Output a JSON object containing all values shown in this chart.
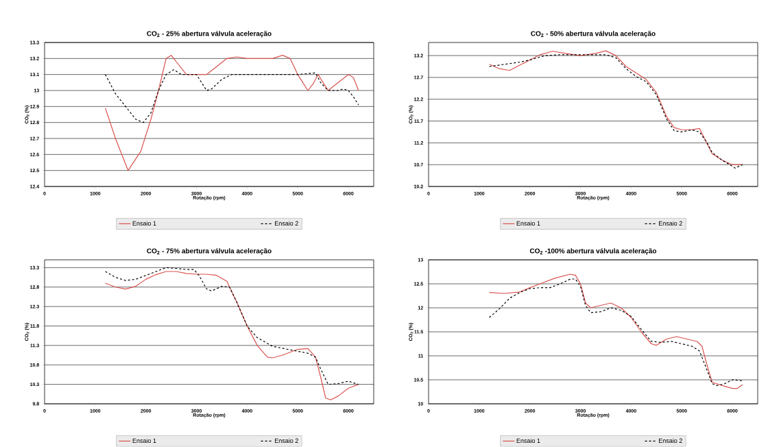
{
  "chart_data": [
    {
      "type": "line",
      "title": "CO$_{2}$ - 25% abertura válvula aceleração",
      "xlabel": "Rotação (rpm)",
      "ylabel": "CO$_{2}$ (%)",
      "xlim": [
        0,
        6500
      ],
      "xticks": [
        0,
        1000,
        2000,
        3000,
        4000,
        5000,
        6000
      ],
      "ylim": [
        12.4,
        13.3
      ],
      "yticks": [
        12.4,
        12.5,
        12.6,
        12.7,
        12.8,
        12.9,
        13,
        13.1,
        13.2,
        13.3
      ],
      "grid": "y",
      "legend": "bottom",
      "series": [
        {
          "name": "Ensaio 1",
          "color": "#d9534f",
          "line_style": "solid",
          "x": [
            1200,
            1400,
            1650,
            1900,
            2100,
            2250,
            2400,
            2500,
            2600,
            2800,
            3000,
            3200,
            3400,
            3600,
            3800,
            4000,
            4500,
            4700,
            4850,
            5000,
            5100,
            5200,
            5300,
            5400,
            5500,
            5600,
            5800,
            6000,
            6100,
            6200
          ],
          "values": [
            12.89,
            12.7,
            12.5,
            12.62,
            12.82,
            13.0,
            13.2,
            13.22,
            13.18,
            13.1,
            13.1,
            13.1,
            13.15,
            13.2,
            13.21,
            13.2,
            13.2,
            13.22,
            13.2,
            13.1,
            13.05,
            13.0,
            13.04,
            13.1,
            13.05,
            13.0,
            13.05,
            13.1,
            13.08,
            13.0
          ]
        },
        {
          "name": "Ensaio 2",
          "color": "#000000",
          "line_style": "dashed",
          "x": [
            1200,
            1400,
            1600,
            1800,
            1950,
            2100,
            2250,
            2400,
            2550,
            2700,
            2900,
            3000,
            3100,
            3200,
            3300,
            3500,
            3700,
            4000,
            5000,
            5350,
            5450,
            5600,
            5800,
            5900,
            6000,
            6100,
            6200
          ],
          "values": [
            13.1,
            12.98,
            12.9,
            12.82,
            12.8,
            12.86,
            13.0,
            13.1,
            13.13,
            13.1,
            13.1,
            13.1,
            13.05,
            13.0,
            13.01,
            13.07,
            13.1,
            13.1,
            13.1,
            13.11,
            13.05,
            13.0,
            13.0,
            13.01,
            13.0,
            12.96,
            12.91
          ]
        }
      ]
    },
    {
      "type": "line",
      "title": "CO$_{2}$ - 50% abertura válvula aceleração",
      "xlabel": "Rotação (rpm)",
      "ylabel": "CO$_{2}$ (%)",
      "xlim": [
        0,
        6500
      ],
      "xticks": [
        0,
        1000,
        2000,
        3000,
        4000,
        5000,
        6000
      ],
      "ylim": [
        10.2,
        13.5
      ],
      "yticks": [
        10.2,
        10.7,
        11.2,
        11.7,
        12.2,
        12.7,
        13.2
      ],
      "grid": "y",
      "legend": "bottom",
      "series": [
        {
          "name": "Ensaio 1",
          "color": "#d9534f",
          "line_style": "solid",
          "x": [
            1200,
            1400,
            1600,
            1800,
            2000,
            2200,
            2450,
            2700,
            3000,
            3300,
            3500,
            3700,
            3900,
            4100,
            4300,
            4500,
            4700,
            4850,
            5000,
            5200,
            5350,
            5450,
            5600,
            5800,
            6000,
            6200
          ],
          "values": [
            13.0,
            12.9,
            12.86,
            12.98,
            13.1,
            13.22,
            13.3,
            13.25,
            13.2,
            13.25,
            13.31,
            13.2,
            12.95,
            12.8,
            12.65,
            12.35,
            11.8,
            11.55,
            11.5,
            11.5,
            11.53,
            11.3,
            10.95,
            10.8,
            10.7,
            10.7
          ]
        },
        {
          "name": "Ensaio 2",
          "color": "#000000",
          "line_style": "dashed",
          "x": [
            1200,
            1500,
            1800,
            2000,
            2300,
            2600,
            3000,
            3500,
            3700,
            3900,
            4100,
            4300,
            4500,
            4700,
            4850,
            5000,
            5200,
            5350,
            5500,
            5600,
            5800,
            5950,
            6050,
            6200
          ],
          "values": [
            12.95,
            13.0,
            13.05,
            13.1,
            13.2,
            13.22,
            13.22,
            13.22,
            13.15,
            12.9,
            12.72,
            12.6,
            12.3,
            11.75,
            11.48,
            11.45,
            11.5,
            11.45,
            11.2,
            10.98,
            10.8,
            10.7,
            10.62,
            10.7
          ]
        }
      ]
    },
    {
      "type": "line",
      "title": "CO$_{2}$ - 75% abertura válvula aceleração",
      "xlabel": "Rotação (rpm)",
      "ylabel": "CO$_{2}$ (%)",
      "xlim": [
        0,
        6500
      ],
      "xticks": [
        0,
        1000,
        2000,
        3000,
        4000,
        5000,
        6000
      ],
      "ylim": [
        9.8,
        13.5
      ],
      "yticks": [
        9.8,
        10.3,
        10.8,
        11.3,
        11.8,
        12.3,
        12.8,
        13.3
      ],
      "grid": "y",
      "legend": "bottom",
      "series": [
        {
          "name": "Ensaio 1",
          "color": "#d9534f",
          "line_style": "solid",
          "x": [
            1200,
            1400,
            1600,
            1800,
            2000,
            2200,
            2400,
            2600,
            2800,
            3000,
            3200,
            3400,
            3600,
            3800,
            4000,
            4200,
            4400,
            4500,
            4700,
            5000,
            5200,
            5350,
            5450,
            5550,
            5650,
            5800,
            6000,
            6200
          ],
          "values": [
            12.9,
            12.8,
            12.75,
            12.82,
            13.0,
            13.12,
            13.2,
            13.2,
            13.15,
            13.13,
            13.13,
            13.1,
            12.95,
            12.4,
            11.8,
            11.3,
            11.0,
            10.98,
            11.05,
            11.2,
            11.22,
            11.0,
            10.5,
            9.95,
            9.9,
            10.0,
            10.2,
            10.3
          ]
        },
        {
          "name": "Ensaio 2",
          "color": "#000000",
          "line_style": "dashed",
          "x": [
            1200,
            1400,
            1600,
            1800,
            2000,
            2200,
            2400,
            2600,
            2800,
            2950,
            3050,
            3200,
            3300,
            3500,
            3650,
            3800,
            4000,
            4200,
            4500,
            4800,
            5000,
            5200,
            5350,
            5450,
            5600,
            5800,
            6000,
            6200
          ],
          "values": [
            13.2,
            13.05,
            12.97,
            13.0,
            13.1,
            13.2,
            13.3,
            13.28,
            13.25,
            13.25,
            13.1,
            12.75,
            12.7,
            12.82,
            12.8,
            12.4,
            11.8,
            11.5,
            11.28,
            11.2,
            11.15,
            11.1,
            11.0,
            10.7,
            10.3,
            10.32,
            10.38,
            10.3
          ]
        }
      ]
    },
    {
      "type": "line",
      "title": "CO$_{2}$ -100% abertura válvula aceleração",
      "xlabel": "Rotação (rpm)",
      "ylabel": "CO$_{2}$ (%)",
      "xlim": [
        0,
        6500
      ],
      "xticks": [
        0,
        1000,
        2000,
        3000,
        4000,
        5000,
        6000
      ],
      "ylim": [
        10,
        13
      ],
      "yticks": [
        10,
        10.5,
        11,
        11.5,
        12,
        12.5,
        13
      ],
      "grid": "y",
      "legend": "bottom",
      "series": [
        {
          "name": "Ensaio 1",
          "color": "#d9534f",
          "line_style": "solid",
          "x": [
            1200,
            1500,
            1800,
            2000,
            2200,
            2500,
            2800,
            2900,
            3000,
            3100,
            3200,
            3400,
            3600,
            3800,
            4000,
            4200,
            4400,
            4500,
            4700,
            4900,
            5100,
            5300,
            5400,
            5500,
            5600,
            5800,
            6000,
            6100,
            6200
          ],
          "values": [
            12.32,
            12.3,
            12.33,
            12.42,
            12.5,
            12.62,
            12.7,
            12.68,
            12.5,
            12.1,
            12.0,
            12.05,
            12.1,
            12.0,
            11.8,
            11.5,
            11.25,
            11.22,
            11.35,
            11.4,
            11.35,
            11.3,
            11.2,
            10.8,
            10.45,
            10.38,
            10.32,
            10.32,
            10.4
          ]
        },
        {
          "name": "Ensaio 2",
          "color": "#000000",
          "line_style": "dashed",
          "x": [
            1200,
            1400,
            1600,
            1800,
            2000,
            2200,
            2400,
            2600,
            2800,
            2900,
            3000,
            3100,
            3200,
            3400,
            3600,
            3800,
            4000,
            4200,
            4400,
            4600,
            4800,
            5000,
            5200,
            5350,
            5500,
            5600,
            5700,
            5850,
            6000,
            6200
          ],
          "values": [
            11.8,
            11.98,
            12.2,
            12.32,
            12.4,
            12.42,
            12.42,
            12.5,
            12.6,
            12.6,
            12.45,
            12.05,
            11.9,
            11.92,
            12.0,
            11.95,
            11.82,
            11.55,
            11.3,
            11.28,
            11.3,
            11.25,
            11.2,
            11.1,
            10.7,
            10.42,
            10.38,
            10.42,
            10.5,
            10.48
          ]
        }
      ]
    }
  ]
}
